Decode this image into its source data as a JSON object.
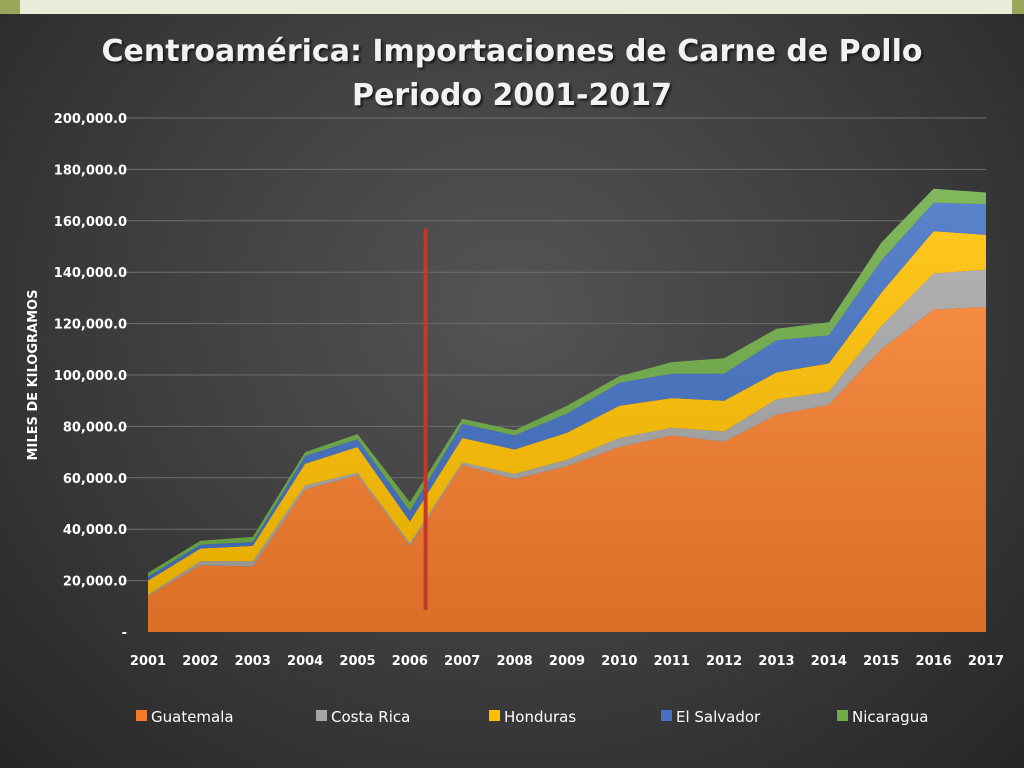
{
  "chart_data": {
    "type": "area",
    "stacked": true,
    "title": "Centroamérica: Importaciones de Carne de Pollo",
    "subtitle": "Periodo 2001-2017",
    "xlabel": "",
    "ylabel": "MILES DE KILOGRAMOS",
    "ylim": [
      0,
      200000
    ],
    "y_ticks": [
      0,
      20000,
      40000,
      60000,
      80000,
      100000,
      120000,
      140000,
      160000,
      180000,
      200000
    ],
    "y_tick_labels": [
      "-",
      "20,000.0",
      "40,000.0",
      "60,000.0",
      "80,000.0",
      "100,000.0",
      "120,000.0",
      "140,000.0",
      "160,000.0",
      "180,000.0",
      "200,000.0"
    ],
    "grid": true,
    "legend_position": "bottom",
    "categories": [
      "2001",
      "2002",
      "2003",
      "2004",
      "2005",
      "2006",
      "2007",
      "2008",
      "2009",
      "2010",
      "2011",
      "2012",
      "2013",
      "2014",
      "2015",
      "2016",
      "2017"
    ],
    "series": [
      {
        "name": "Guatemala",
        "color": "#f47b2a",
        "values": [
          14000,
          26000,
          25500,
          55500,
          61000,
          33500,
          65000,
          59500,
          64500,
          72000,
          76500,
          74000,
          84500,
          88500,
          110000,
          125500,
          126500
        ]
      },
      {
        "name": "Costa Rica",
        "color": "#a5a5a5",
        "values": [
          500,
          1500,
          2000,
          1500,
          1000,
          1000,
          1000,
          2000,
          2500,
          3500,
          3000,
          4000,
          6000,
          5000,
          9000,
          14000,
          14500
        ]
      },
      {
        "name": "Honduras",
        "color": "#ffc000",
        "values": [
          5500,
          5000,
          6000,
          8500,
          10000,
          8500,
          9500,
          9500,
          10500,
          12500,
          11500,
          12000,
          10500,
          11000,
          13000,
          16500,
          13500
        ]
      },
      {
        "name": "El Salvador",
        "color": "#4472c4",
        "values": [
          1500,
          1500,
          1500,
          3000,
          3000,
          4000,
          5500,
          5500,
          7500,
          9000,
          9500,
          10500,
          12500,
          11000,
          12500,
          11000,
          12000
        ]
      },
      {
        "name": "Nicaragua",
        "color": "#70ad47",
        "values": [
          1500,
          1500,
          2000,
          1500,
          2000,
          3500,
          2000,
          2000,
          3000,
          2500,
          4500,
          6000,
          4500,
          5000,
          7000,
          5500,
          4500
        ]
      }
    ],
    "annotation_marker": {
      "type": "vertical-line",
      "color": "#c0392b",
      "x_position": 2006.3
    }
  }
}
